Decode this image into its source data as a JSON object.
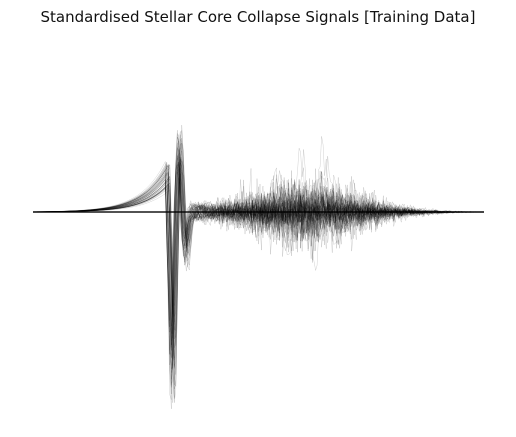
{
  "chart_data": {
    "type": "line",
    "title": "Standardised Stellar Core Collapse Signals [Training Data]",
    "xlabel": "",
    "ylabel": "",
    "axes_visible": false,
    "grid": false,
    "legend": "none",
    "series_count": "many overlaid semi-transparent traces",
    "line_color": "#000000",
    "ylim": [
      -1.0,
      1.0
    ],
    "xlim": [
      0,
      1
    ],
    "template_signal": {
      "description_points_x": [
        0.0,
        0.2,
        0.28,
        0.3,
        0.305,
        0.31,
        0.32,
        0.33,
        0.34,
        0.35,
        0.37,
        0.4,
        0.45,
        0.5,
        0.6,
        0.7,
        0.8,
        0.9,
        1.0
      ],
      "description_points_y": [
        0.0,
        0.0,
        0.18,
        0.22,
        -0.4,
        -1.0,
        0.35,
        0.4,
        -0.35,
        0.12,
        -0.06,
        0.03,
        -0.015,
        0.01,
        0.0,
        0.005,
        0.0,
        0.0,
        0.0
      ]
    }
  }
}
